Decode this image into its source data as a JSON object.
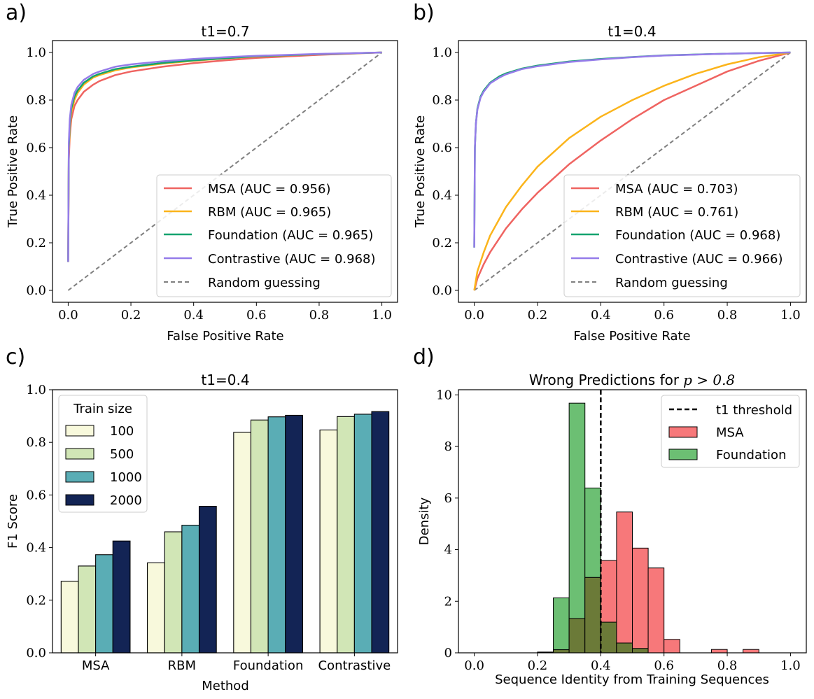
{
  "colors": {
    "msa": "#ef6461",
    "rbm": "#fbb41b",
    "foundation": "#14a36f",
    "contrastive": "#957ce9",
    "random": "#808080",
    "bar_colors": [
      "#f8f9dc",
      "#d1e6b6",
      "#5aadb5",
      "#132455"
    ],
    "hist_msa": "#f7787a",
    "hist_foundation": "#6cbf73",
    "hist_overlap": "#6b7a38"
  },
  "chart_data": [
    {
      "panel_label": "a)",
      "type": "line",
      "title": "t1=0.7",
      "xlabel": "False Positive Rate",
      "ylabel": "True Positive Rate",
      "xlim": [
        -0.05,
        1.05
      ],
      "ylim": [
        -0.05,
        1.05
      ],
      "xticks": [
        "0.0",
        "0.2",
        "0.4",
        "0.6",
        "0.8",
        "1.0"
      ],
      "yticks": [
        "0.0",
        "0.2",
        "0.4",
        "0.6",
        "0.8",
        "1.0"
      ],
      "legend_position": "lower-right",
      "series": [
        {
          "name": "MSA (AUC = 0.956)",
          "color_key": "msa",
          "x": [
            0,
            0.002,
            0.005,
            0.01,
            0.02,
            0.03,
            0.05,
            0.08,
            0.1,
            0.15,
            0.2,
            0.3,
            0.4,
            0.5,
            0.6,
            0.8,
            1.0
          ],
          "y": [
            0.12,
            0.55,
            0.65,
            0.72,
            0.775,
            0.8,
            0.835,
            0.865,
            0.88,
            0.905,
            0.92,
            0.94,
            0.955,
            0.967,
            0.977,
            0.99,
            1.0
          ]
        },
        {
          "name": "RBM (AUC = 0.965)",
          "color_key": "rbm",
          "x": [
            0,
            0.002,
            0.005,
            0.01,
            0.02,
            0.03,
            0.05,
            0.08,
            0.1,
            0.15,
            0.2,
            0.3,
            0.4,
            0.5,
            0.6,
            0.8,
            1.0
          ],
          "y": [
            0.12,
            0.58,
            0.68,
            0.75,
            0.8,
            0.83,
            0.865,
            0.895,
            0.905,
            0.925,
            0.937,
            0.953,
            0.965,
            0.975,
            0.983,
            0.993,
            1.0
          ]
        },
        {
          "name": "Foundation (AUC = 0.965)",
          "color_key": "foundation",
          "x": [
            0,
            0.002,
            0.005,
            0.01,
            0.02,
            0.03,
            0.05,
            0.08,
            0.1,
            0.15,
            0.2,
            0.3,
            0.4,
            0.5,
            0.6,
            0.8,
            1.0
          ],
          "y": [
            0.12,
            0.6,
            0.7,
            0.765,
            0.815,
            0.84,
            0.873,
            0.9,
            0.91,
            0.93,
            0.94,
            0.956,
            0.967,
            0.976,
            0.984,
            0.993,
            1.0
          ]
        },
        {
          "name": "Contrastive (AUC = 0.968)",
          "color_key": "contrastive",
          "x": [
            0,
            0.002,
            0.005,
            0.01,
            0.02,
            0.03,
            0.05,
            0.08,
            0.1,
            0.15,
            0.2,
            0.3,
            0.4,
            0.5,
            0.6,
            0.8,
            1.0
          ],
          "y": [
            0.12,
            0.62,
            0.72,
            0.78,
            0.83,
            0.855,
            0.885,
            0.91,
            0.92,
            0.94,
            0.95,
            0.963,
            0.973,
            0.98,
            0.986,
            0.994,
            1.0
          ]
        },
        {
          "name": "Random guessing",
          "color_key": "random",
          "dashed": true,
          "x": [
            0,
            1
          ],
          "y": [
            0,
            1
          ]
        }
      ]
    },
    {
      "panel_label": "b)",
      "type": "line",
      "title": "t1=0.4",
      "xlabel": "False Positive Rate",
      "ylabel": "True Positive Rate",
      "xlim": [
        -0.05,
        1.05
      ],
      "ylim": [
        -0.05,
        1.05
      ],
      "xticks": [
        "0.0",
        "0.2",
        "0.4",
        "0.6",
        "0.8",
        "1.0"
      ],
      "yticks": [
        "0.0",
        "0.2",
        "0.4",
        "0.6",
        "0.8",
        "1.0"
      ],
      "legend_position": "lower-right",
      "series": [
        {
          "name": "MSA (AUC = 0.703)",
          "color_key": "msa",
          "x": [
            0,
            0.01,
            0.03,
            0.05,
            0.1,
            0.15,
            0.2,
            0.3,
            0.4,
            0.5,
            0.6,
            0.7,
            0.8,
            0.9,
            1.0
          ],
          "y": [
            0,
            0.05,
            0.11,
            0.16,
            0.26,
            0.34,
            0.41,
            0.53,
            0.63,
            0.72,
            0.8,
            0.86,
            0.92,
            0.965,
            1.0
          ]
        },
        {
          "name": "RBM (AUC = 0.761)",
          "color_key": "rbm",
          "x": [
            0,
            0.01,
            0.03,
            0.05,
            0.1,
            0.15,
            0.2,
            0.3,
            0.4,
            0.5,
            0.6,
            0.7,
            0.8,
            0.9,
            1.0
          ],
          "y": [
            0,
            0.08,
            0.16,
            0.23,
            0.35,
            0.44,
            0.52,
            0.64,
            0.73,
            0.8,
            0.86,
            0.91,
            0.95,
            0.98,
            1.0
          ]
        },
        {
          "name": "Foundation (AUC = 0.968)",
          "color_key": "foundation",
          "x": [
            0,
            0.002,
            0.005,
            0.01,
            0.02,
            0.03,
            0.05,
            0.08,
            0.1,
            0.15,
            0.2,
            0.3,
            0.4,
            0.5,
            0.6,
            0.8,
            1.0
          ],
          "y": [
            0.18,
            0.6,
            0.7,
            0.765,
            0.815,
            0.84,
            0.873,
            0.9,
            0.912,
            0.932,
            0.945,
            0.962,
            0.973,
            0.981,
            0.988,
            0.995,
            1.0
          ]
        },
        {
          "name": "Contrastive (AUC = 0.966)",
          "color_key": "contrastive",
          "x": [
            0,
            0.002,
            0.005,
            0.01,
            0.02,
            0.03,
            0.05,
            0.08,
            0.1,
            0.15,
            0.2,
            0.3,
            0.4,
            0.5,
            0.6,
            0.8,
            1.0
          ],
          "y": [
            0.18,
            0.6,
            0.7,
            0.76,
            0.81,
            0.835,
            0.87,
            0.895,
            0.908,
            0.93,
            0.942,
            0.96,
            0.971,
            0.98,
            0.987,
            0.995,
            1.0
          ]
        },
        {
          "name": "Random guessing",
          "color_key": "random",
          "dashed": true,
          "x": [
            0,
            1
          ],
          "y": [
            0,
            1
          ]
        }
      ]
    },
    {
      "panel_label": "c)",
      "type": "bar",
      "title": "t1=0.4",
      "xlabel": "Method",
      "ylabel": "F1 Score",
      "ylim": [
        0,
        1
      ],
      "yticks": [
        "0.0",
        "0.2",
        "0.4",
        "0.6",
        "0.8",
        "1.0"
      ],
      "categories": [
        "MSA",
        "RBM",
        "Foundation",
        "Contrastive"
      ],
      "legend_title": "Train size",
      "legend_position": "top-left",
      "series": [
        {
          "name": "100",
          "values": [
            0.272,
            0.342,
            0.838,
            0.847
          ]
        },
        {
          "name": "500",
          "values": [
            0.33,
            0.46,
            0.885,
            0.898
          ]
        },
        {
          "name": "1000",
          "values": [
            0.373,
            0.485,
            0.897,
            0.907
          ]
        },
        {
          "name": "2000",
          "values": [
            0.425,
            0.557,
            0.903,
            0.917
          ]
        }
      ]
    },
    {
      "panel_label": "d)",
      "type": "bar",
      "subtype": "histogram",
      "title_text": "Wrong Predictions for",
      "title_math": "p > 0.8",
      "xlabel": "Sequence Identity from Training Sequences",
      "ylabel": "Density",
      "xlim": [
        -0.05,
        1.05
      ],
      "ylim": [
        0,
        10.2
      ],
      "xticks": [
        "0.0",
        "0.2",
        "0.4",
        "0.6",
        "0.8",
        "1.0"
      ],
      "yticks": [
        "0",
        "2",
        "4",
        "6",
        "8",
        "10"
      ],
      "bin_edges": [
        0.15,
        0.2,
        0.25,
        0.3,
        0.35,
        0.4,
        0.45,
        0.5,
        0.55,
        0.6,
        0.65,
        0.7,
        0.75,
        0.8,
        0.85,
        0.9
      ],
      "threshold": 0.4,
      "legend_position": "top-right",
      "series": [
        {
          "name": "MSA",
          "color_key": "hist_msa",
          "values": [
            0,
            0.02,
            0.12,
            1.33,
            2.92,
            3.58,
            5.46,
            4.06,
            3.29,
            0.52,
            0,
            0,
            0.13,
            0,
            0.13
          ]
        },
        {
          "name": "Foundation",
          "color_key": "hist_foundation",
          "values": [
            0,
            0.03,
            2.13,
            9.68,
            6.39,
            1.19,
            0.38,
            0.17,
            0,
            0,
            0,
            0,
            0,
            0,
            0
          ]
        }
      ],
      "threshold_label": "t1 threshold"
    }
  ]
}
